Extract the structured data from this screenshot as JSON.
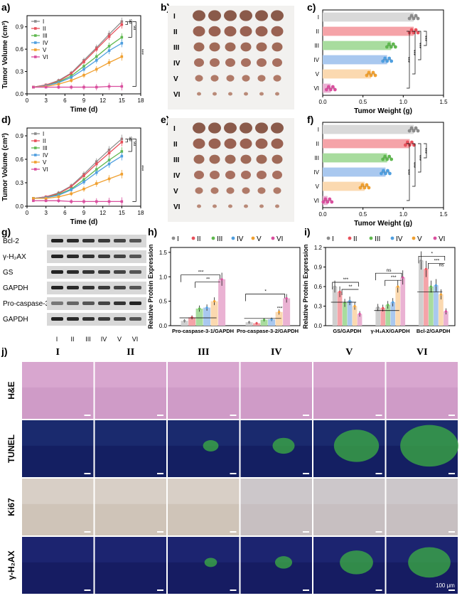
{
  "panel_labels": [
    "a)",
    "b)",
    "c)",
    "d)",
    "e)",
    "f)",
    "g)",
    "h)",
    "i)",
    "j)"
  ],
  "groups": [
    "I",
    "II",
    "III",
    "IV",
    "V",
    "VI"
  ],
  "colors": [
    "#8c8c8c",
    "#e8505b",
    "#5fb84f",
    "#4f9fe0",
    "#f0a030",
    "#d94f9e"
  ],
  "chart_data": [
    {
      "id": "a",
      "type": "line",
      "xlabel": "Time (d)",
      "ylabel": "Tumor Volume (cm³)",
      "xlim": [
        0,
        18
      ],
      "ylim": [
        0,
        1.05
      ],
      "xticks": [
        0,
        3,
        6,
        9,
        12,
        15,
        18
      ],
      "yticks": [
        0.0,
        0.3,
        0.6,
        0.9
      ],
      "x": [
        1,
        3,
        5,
        7,
        9,
        11,
        13,
        15
      ],
      "series": [
        {
          "name": "I",
          "values": [
            0.09,
            0.12,
            0.18,
            0.28,
            0.45,
            0.62,
            0.8,
            0.97
          ]
        },
        {
          "name": "II",
          "values": [
            0.09,
            0.12,
            0.17,
            0.27,
            0.43,
            0.6,
            0.77,
            0.93
          ]
        },
        {
          "name": "III",
          "values": [
            0.09,
            0.11,
            0.16,
            0.24,
            0.37,
            0.5,
            0.64,
            0.76
          ]
        },
        {
          "name": "IV",
          "values": [
            0.09,
            0.11,
            0.15,
            0.22,
            0.33,
            0.45,
            0.58,
            0.68
          ]
        },
        {
          "name": "V",
          "values": [
            0.09,
            0.1,
            0.13,
            0.18,
            0.25,
            0.33,
            0.42,
            0.5
          ]
        },
        {
          "name": "VI",
          "values": [
            0.09,
            0.09,
            0.09,
            0.09,
            0.09,
            0.09,
            0.1,
            0.1
          ]
        }
      ],
      "annotations": [
        "ns",
        "ns",
        "***"
      ]
    },
    {
      "id": "c",
      "type": "bar",
      "xlabel": "Tumor Weight (g)",
      "xlim": [
        0,
        1.5
      ],
      "xticks": [
        0.0,
        0.5,
        1.0,
        1.5
      ],
      "categories": [
        "I",
        "II",
        "III",
        "IV",
        "V",
        "VI"
      ],
      "values": [
        1.13,
        1.13,
        0.85,
        0.8,
        0.6,
        0.1
      ],
      "annotations": [
        "***",
        "***",
        "***",
        "***"
      ]
    },
    {
      "id": "d",
      "type": "line",
      "xlabel": "Time (d)",
      "ylabel": "Tumor Volume (cm³)",
      "xlim": [
        0,
        18
      ],
      "ylim": [
        0,
        1.0
      ],
      "xticks": [
        0,
        3,
        6,
        9,
        12,
        15,
        18
      ],
      "yticks": [
        0.0,
        0.3,
        0.6,
        0.9
      ],
      "x": [
        1,
        3,
        5,
        7,
        9,
        11,
        13,
        15
      ],
      "series": [
        {
          "name": "I",
          "values": [
            0.1,
            0.12,
            0.17,
            0.26,
            0.41,
            0.57,
            0.72,
            0.86
          ]
        },
        {
          "name": "II",
          "values": [
            0.1,
            0.12,
            0.16,
            0.25,
            0.39,
            0.54,
            0.68,
            0.82
          ]
        },
        {
          "name": "III",
          "values": [
            0.1,
            0.11,
            0.15,
            0.22,
            0.34,
            0.47,
            0.59,
            0.7
          ]
        },
        {
          "name": "IV",
          "values": [
            0.1,
            0.11,
            0.14,
            0.21,
            0.31,
            0.43,
            0.54,
            0.64
          ]
        },
        {
          "name": "V",
          "values": [
            0.1,
            0.1,
            0.12,
            0.16,
            0.22,
            0.29,
            0.35,
            0.41
          ]
        },
        {
          "name": "VI",
          "values": [
            0.07,
            0.07,
            0.07,
            0.06,
            0.06,
            0.06,
            0.06,
            0.06
          ]
        }
      ],
      "annotations": [
        "ns",
        "ns",
        "***"
      ]
    },
    {
      "id": "f",
      "type": "bar",
      "xlabel": "Tumor Weight (g)",
      "xlim": [
        0,
        1.5
      ],
      "xticks": [
        0.0,
        0.5,
        1.0,
        1.5
      ],
      "categories": [
        "I",
        "II",
        "III",
        "IV",
        "V",
        "VI"
      ],
      "values": [
        1.13,
        1.08,
        0.8,
        0.78,
        0.52,
        0.06
      ],
      "annotations": [
        "***",
        "***",
        "***",
        "***"
      ]
    },
    {
      "id": "h",
      "type": "bar",
      "ylabel": "Relative Protein Expression",
      "ylim": [
        0,
        1.6
      ],
      "yticks": [
        0.0,
        0.5,
        1.0,
        1.5
      ],
      "categories": [
        "Pro-caspase-3-1/GAPDH",
        "Pro-caspase-3-2/GAPDH"
      ],
      "series": [
        {
          "name": "I",
          "values": [
            0.1,
            0.07
          ]
        },
        {
          "name": "II",
          "values": [
            0.17,
            0.05
          ]
        },
        {
          "name": "III",
          "values": [
            0.35,
            0.12
          ]
        },
        {
          "name": "IV",
          "values": [
            0.37,
            0.13
          ]
        },
        {
          "name": "V",
          "values": [
            0.5,
            0.28
          ]
        },
        {
          "name": "VI",
          "values": [
            0.95,
            0.56
          ]
        }
      ],
      "annotations": [
        "***",
        "**",
        "*",
        "***"
      ]
    },
    {
      "id": "i",
      "type": "bar",
      "ylabel": "Relative Protein Expression",
      "ylim": [
        0,
        1.2
      ],
      "yticks": [
        0.0,
        0.3,
        0.6,
        0.9,
        1.2
      ],
      "categories": [
        "GS/GAPDH",
        "γ-H₂AX/GAPDH",
        "Bcl-2/GAPDH"
      ],
      "series": [
        {
          "name": "I",
          "values": [
            0.6,
            0.28,
            1.0
          ]
        },
        {
          "name": "II",
          "values": [
            0.52,
            0.27,
            0.87
          ]
        },
        {
          "name": "III",
          "values": [
            0.35,
            0.32,
            0.6
          ]
        },
        {
          "name": "IV",
          "values": [
            0.38,
            0.36,
            0.62
          ]
        },
        {
          "name": "V",
          "values": [
            0.3,
            0.6,
            0.48
          ]
        },
        {
          "name": "VI",
          "values": [
            0.18,
            0.74,
            0.22
          ]
        }
      ],
      "annotations": [
        "***",
        "**",
        "ns",
        "***",
        "*",
        "***",
        "ns"
      ]
    }
  ],
  "blot": {
    "labels": [
      "Bcl-2",
      "γ-H₂AX",
      "GS",
      "GAPDH",
      "Pro-caspase-3",
      "GAPDH"
    ],
    "lanes": [
      "I",
      "II",
      "III",
      "IV",
      "V",
      "VI"
    ]
  },
  "histology": {
    "rows": [
      "H&E",
      "TUNEL",
      "Ki67",
      "γ-H₂AX"
    ],
    "cols": [
      "I",
      "II",
      "III",
      "IV",
      "V",
      "VI"
    ],
    "scale_text": "100 μm"
  }
}
